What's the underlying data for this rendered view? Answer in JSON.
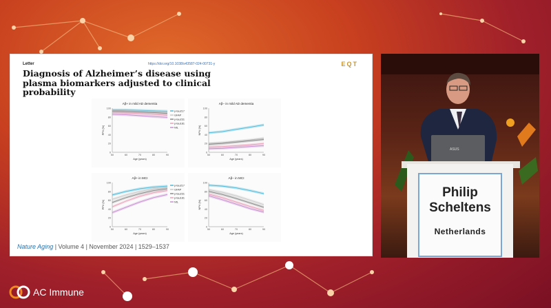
{
  "slide": {
    "letter": "Letter",
    "doi": "https://doi.org/10.1038/s43587-024-00731-y",
    "logo": "EQT",
    "title_lines": [
      "Diagnosis of Alzheimer’s disease using",
      "plasma biomarkers adjusted to clinical",
      "probability"
    ],
    "journal_name": "Nature Aging",
    "journal_rest": " | Volume 4 | November 2024 | 1529–1537"
  },
  "panels": [
    {
      "title": "Aβ+ in mild AD dementia",
      "ylabel": "PPV (%)",
      "xlabel": "Age (years)",
      "yticks": [
        "100",
        "80",
        "60",
        "40",
        "20",
        "0"
      ],
      "xticks": [
        "50",
        "60",
        "70",
        "80",
        "90"
      ]
    },
    {
      "title": "Aβ− in mild AD dementia",
      "ylabel": "NPV (%)",
      "xlabel": "Age (years)",
      "yticks": [
        "100",
        "80",
        "60",
        "40",
        "20",
        "0"
      ],
      "xticks": [
        "50",
        "60",
        "70",
        "80",
        "90"
      ]
    },
    {
      "title": "Aβ+ in MCI",
      "ylabel": "PPV (%)",
      "xlabel": "Age (years)",
      "yticks": [
        "100",
        "80",
        "60",
        "40",
        "20",
        "0"
      ],
      "xticks": [
        "50",
        "60",
        "70",
        "80",
        "90"
      ]
    },
    {
      "title": "Aβ− in MCI",
      "ylabel": "NPV (%)",
      "xlabel": "Age (years)",
      "yticks": [
        "100",
        "80",
        "60",
        "40",
        "20",
        "0"
      ],
      "xticks": [
        "50",
        "60",
        "70",
        "80",
        "90"
      ]
    }
  ],
  "legend": [
    "p-tau217",
    "GFAP",
    "p-tau231",
    "p-tau181",
    "NfL"
  ],
  "colors": {
    "p-tau217": "#4ab8d8",
    "GFAP": "#c8c8c8",
    "p-tau231": "#8a8a8a",
    "p-tau181": "#e8a0b8",
    "NfL": "#c890d0",
    "accent": "#2a6fa8"
  },
  "chart_data": [
    {
      "type": "line",
      "title": "Aβ+ in mild AD dementia",
      "xlabel": "Age (years)",
      "ylabel": "PPV (%)",
      "xlim": [
        50,
        90
      ],
      "ylim": [
        0,
        100
      ],
      "x": [
        50,
        60,
        70,
        80,
        90
      ],
      "series": [
        {
          "name": "p-tau217",
          "values": [
            96,
            96,
            95,
            94,
            93
          ]
        },
        {
          "name": "GFAP",
          "values": [
            95,
            94,
            93,
            92,
            90
          ]
        },
        {
          "name": "p-tau231",
          "values": [
            93,
            92,
            91,
            90,
            88
          ]
        },
        {
          "name": "p-tau181",
          "values": [
            90,
            89,
            88,
            86,
            84
          ]
        },
        {
          "name": "NfL",
          "values": [
            86,
            85,
            83,
            81,
            79
          ]
        }
      ]
    },
    {
      "type": "line",
      "title": "Aβ− in mild AD dementia",
      "xlabel": "Age (years)",
      "ylabel": "NPV (%)",
      "xlim": [
        50,
        90
      ],
      "ylim": [
        0,
        100
      ],
      "x": [
        50,
        60,
        70,
        80,
        90
      ],
      "series": [
        {
          "name": "p-tau217",
          "values": [
            44,
            47,
            52,
            57,
            62
          ]
        },
        {
          "name": "GFAP",
          "values": [
            20,
            22,
            25,
            28,
            32
          ]
        },
        {
          "name": "p-tau231",
          "values": [
            18,
            20,
            23,
            26,
            29
          ]
        },
        {
          "name": "p-tau181",
          "values": [
            12,
            13,
            15,
            17,
            20
          ]
        },
        {
          "name": "NfL",
          "values": [
            8,
            9,
            11,
            13,
            15
          ]
        }
      ]
    },
    {
      "type": "line",
      "title": "Aβ+ in MCI",
      "xlabel": "Age (years)",
      "ylabel": "PPV (%)",
      "xlim": [
        50,
        90
      ],
      "ylim": [
        0,
        100
      ],
      "x": [
        50,
        60,
        70,
        80,
        90
      ],
      "series": [
        {
          "name": "p-tau217",
          "values": [
            72,
            80,
            86,
            90,
            92
          ]
        },
        {
          "name": "GFAP",
          "values": [
            62,
            72,
            80,
            86,
            89
          ]
        },
        {
          "name": "p-tau231",
          "values": [
            55,
            66,
            75,
            82,
            86
          ]
        },
        {
          "name": "p-tau181",
          "values": [
            45,
            58,
            69,
            77,
            82
          ]
        },
        {
          "name": "NfL",
          "values": [
            32,
            44,
            56,
            66,
            73
          ]
        }
      ]
    },
    {
      "type": "line",
      "title": "Aβ− in MCI",
      "xlabel": "Age (years)",
      "ylabel": "NPV (%)",
      "xlim": [
        50,
        90
      ],
      "ylim": [
        0,
        100
      ],
      "x": [
        50,
        60,
        70,
        80,
        90
      ],
      "series": [
        {
          "name": "p-tau217",
          "values": [
            94,
            92,
            88,
            82,
            75
          ]
        },
        {
          "name": "GFAP",
          "values": [
            84,
            78,
            70,
            60,
            50
          ]
        },
        {
          "name": "p-tau231",
          "values": [
            80,
            73,
            64,
            54,
            44
          ]
        },
        {
          "name": "p-tau181",
          "values": [
            74,
            66,
            56,
            46,
            37
          ]
        },
        {
          "name": "NfL",
          "values": [
            70,
            61,
            51,
            41,
            33
          ]
        }
      ]
    }
  ],
  "speaker": {
    "first_name": "Philip",
    "last_name": "Scheltens",
    "country": "Netherlands"
  },
  "laptop_brand": "ASUS",
  "footer": {
    "brand": "AC Immune"
  }
}
